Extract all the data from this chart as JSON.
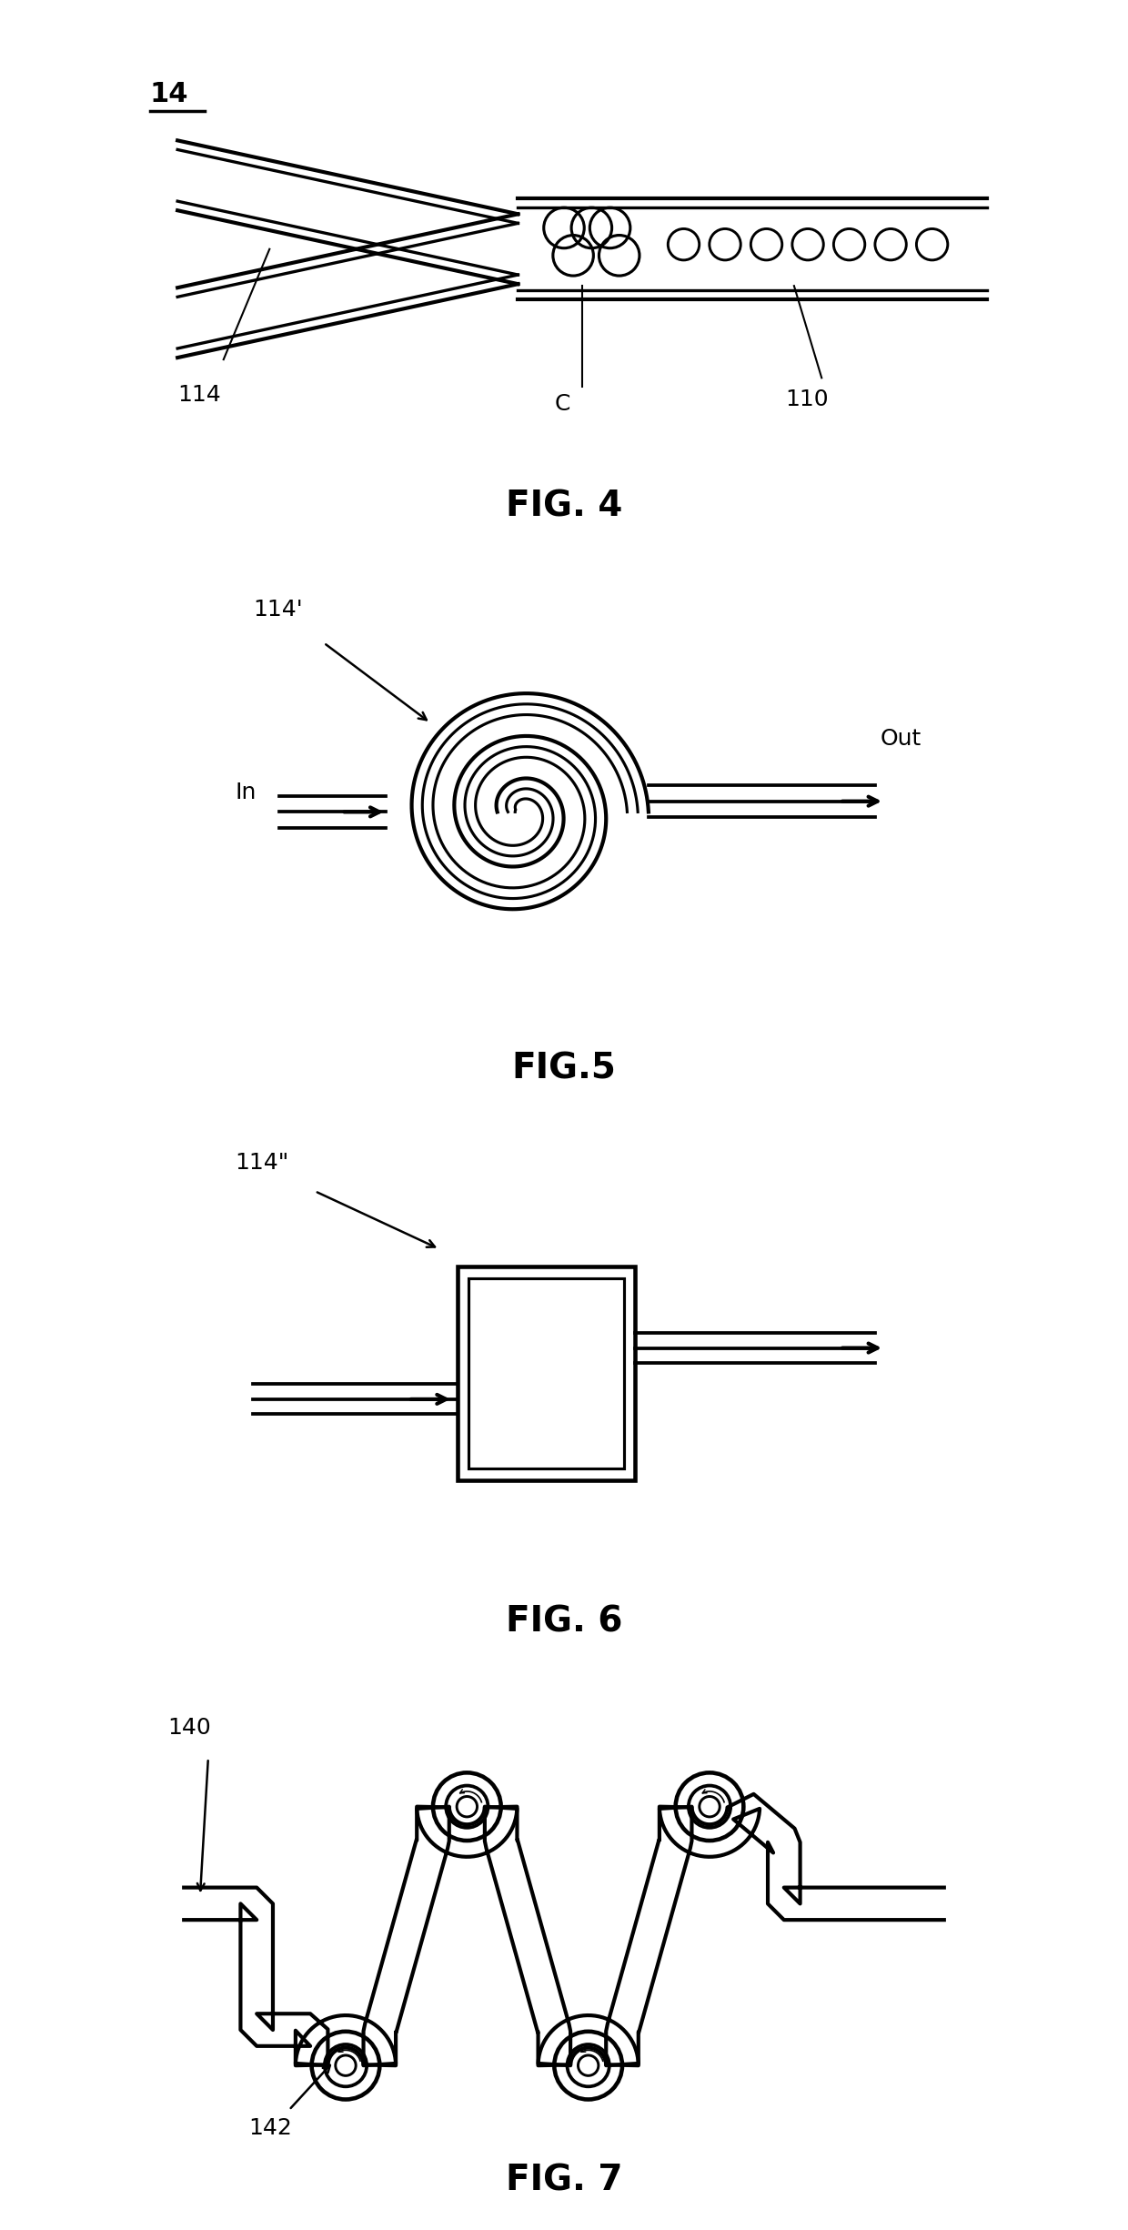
{
  "bg_color": "#ffffff",
  "line_color": "#000000",
  "line_width": 3.0,
  "fig4": {
    "label": "14",
    "label_114": "114",
    "label_C": "C",
    "label_110": "110",
    "caption": "FIG. 4"
  },
  "fig5": {
    "label_114prime": "114'",
    "label_in": "In",
    "label_out": "Out",
    "caption": "FIG.5"
  },
  "fig6": {
    "label_114dbl": "114\"",
    "caption": "FIG. 6"
  },
  "fig7": {
    "label_140": "140",
    "label_142": "142",
    "caption": "FIG. 7"
  }
}
